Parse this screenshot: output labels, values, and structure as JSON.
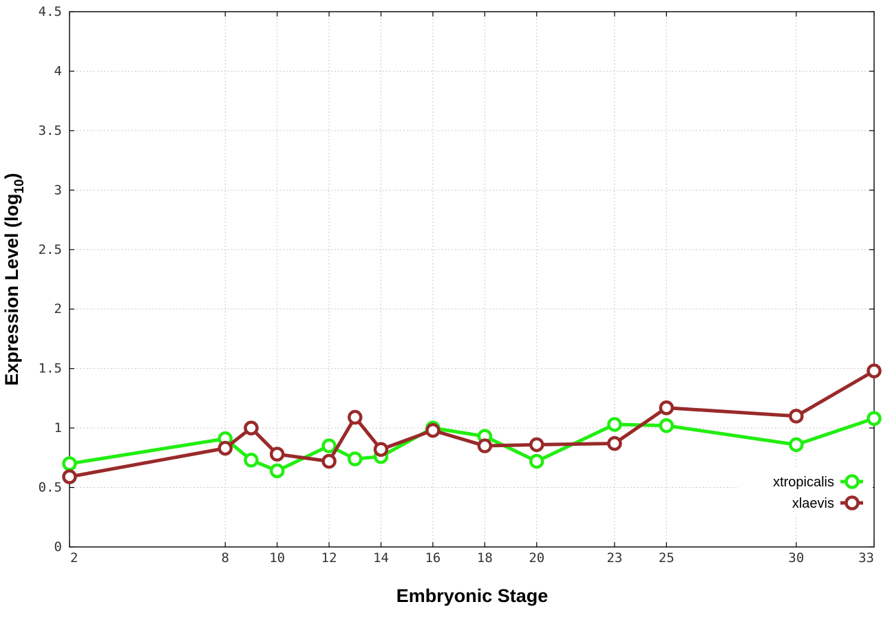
{
  "chart_data": {
    "type": "line",
    "title": "",
    "xlabel": "Embryonic Stage",
    "ylabel_main": "Expression Level (log",
    "ylabel_sub": "10",
    "ylabel_end": ")",
    "x_ticks": [
      "2",
      "8",
      "10",
      "12",
      "14",
      "16",
      "18",
      "20",
      "23",
      "25",
      "30",
      "33"
    ],
    "y_ticks": [
      "0",
      "0.5",
      "1",
      "1.5",
      "2",
      "2.5",
      "3",
      "3.5",
      "4",
      "4.5"
    ],
    "ylim": [
      0,
      4.5
    ],
    "xlim": [
      2,
      33
    ],
    "grid": true,
    "legend_position": "bottom-right",
    "x": [
      2,
      8,
      9,
      10,
      12,
      13,
      14,
      16,
      18,
      20,
      23,
      25,
      30,
      33
    ],
    "series": [
      {
        "name": "xtropicalis",
        "color": "#22ee11",
        "values": [
          0.7,
          0.91,
          0.73,
          0.64,
          0.85,
          0.74,
          0.76,
          1.0,
          0.93,
          0.72,
          1.03,
          1.02,
          0.86,
          1.08
        ]
      },
      {
        "name": "xlaevis",
        "color": "#992a2a",
        "values": [
          0.59,
          0.83,
          1.0,
          0.78,
          0.72,
          1.09,
          0.82,
          0.98,
          0.85,
          0.86,
          0.87,
          1.17,
          1.1,
          1.48
        ]
      }
    ]
  }
}
